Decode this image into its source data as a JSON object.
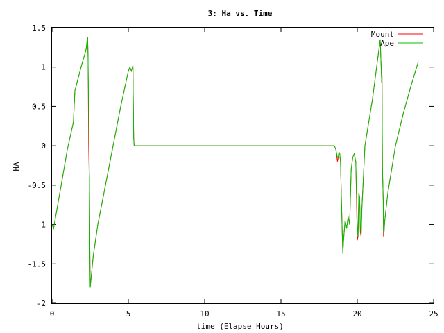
{
  "chart_data": {
    "type": "line",
    "title": "3: Ha vs. Time",
    "xlabel": "time (Elapse Hours)",
    "ylabel": "HA",
    "xlim": [
      0,
      25
    ],
    "ylim": [
      -2,
      1.5
    ],
    "xticks": [
      0,
      5,
      10,
      15,
      20,
      25
    ],
    "yticks": [
      -2,
      -1.5,
      -1,
      -0.5,
      0,
      0.5,
      1,
      1.5
    ],
    "xtick_labels": [
      "0",
      "5",
      "10",
      "15",
      "20",
      "25"
    ],
    "ytick_labels": [
      "-2",
      "-1.5",
      "-1",
      "-0.5",
      "0",
      "0.5",
      "1",
      "1.5"
    ],
    "grid": false,
    "legend_position": "top-right",
    "series": [
      {
        "name": "Mount",
        "color": "#ff0000",
        "x": [
          0.0,
          0.1,
          0.6,
          1.0,
          1.4,
          1.5,
          1.9,
          2.2,
          2.25,
          2.3,
          2.33,
          2.36,
          2.37,
          2.4,
          2.44,
          2.45,
          2.48,
          2.5,
          2.55,
          2.7,
          3.0,
          3.5,
          4.0,
          4.5,
          5.0,
          5.1,
          5.2,
          5.3,
          5.35,
          5.38,
          5.42,
          5.5,
          18.5,
          18.6,
          18.7,
          18.75,
          18.8,
          18.85,
          18.9,
          19.0,
          19.05,
          19.1,
          19.2,
          19.3,
          19.4,
          19.5,
          19.6,
          19.7,
          19.8,
          19.9,
          20.0,
          20.05,
          20.1,
          20.15,
          20.2,
          20.25,
          20.3,
          20.5,
          21.0,
          21.5,
          21.6,
          21.62,
          21.65,
          21.7,
          21.72,
          21.75,
          21.8,
          22.0,
          22.5,
          23.0,
          23.5,
          24.0
        ],
        "y": [
          -1.0,
          -1.05,
          -0.5,
          -0.05,
          0.3,
          0.7,
          1.0,
          1.2,
          1.25,
          1.35,
          1.38,
          1.15,
          0.95,
          0.0,
          -0.43,
          -0.4,
          -1.4,
          -1.8,
          -1.7,
          -1.4,
          -1.0,
          -0.5,
          0.0,
          0.5,
          0.95,
          1.0,
          0.95,
          1.02,
          0.1,
          0.0,
          0.0,
          0.0,
          0.0,
          -0.05,
          -0.2,
          -0.15,
          -0.08,
          -0.1,
          -0.2,
          -1.0,
          -1.37,
          -1.2,
          -0.95,
          -1.05,
          -0.9,
          -1.0,
          -0.3,
          -0.15,
          -0.1,
          -0.2,
          -1.2,
          -1.15,
          -0.6,
          -0.65,
          -1.1,
          -1.15,
          -0.8,
          0.0,
          0.6,
          1.35,
          0.8,
          0.9,
          -0.3,
          -0.7,
          -1.15,
          -1.1,
          -0.95,
          -0.6,
          0.0,
          0.4,
          0.75,
          1.07
        ]
      },
      {
        "name": "Ape",
        "color": "#00c000",
        "x": [
          0.0,
          0.1,
          0.6,
          1.0,
          1.4,
          1.5,
          1.9,
          2.2,
          2.25,
          2.3,
          2.33,
          2.36,
          2.37,
          2.4,
          2.44,
          2.45,
          2.48,
          2.5,
          2.55,
          2.7,
          3.0,
          3.5,
          4.0,
          4.5,
          5.0,
          5.1,
          5.2,
          5.3,
          5.35,
          5.38,
          5.42,
          5.5,
          18.5,
          18.6,
          18.7,
          18.75,
          18.8,
          18.85,
          18.9,
          19.0,
          19.05,
          19.1,
          19.2,
          19.3,
          19.4,
          19.5,
          19.6,
          19.7,
          19.8,
          19.9,
          20.0,
          20.05,
          20.1,
          20.15,
          20.2,
          20.25,
          20.3,
          20.5,
          21.0,
          21.5,
          21.6,
          21.62,
          21.65,
          21.7,
          21.72,
          21.75,
          21.8,
          22.0,
          22.5,
          23.0,
          23.5,
          24.0
        ],
        "y": [
          -1.0,
          -1.05,
          -0.5,
          -0.05,
          0.3,
          0.7,
          1.0,
          1.2,
          1.25,
          1.35,
          1.38,
          1.15,
          0.95,
          0.5,
          -0.3,
          -0.4,
          -1.4,
          -1.8,
          -1.7,
          -1.4,
          -1.0,
          -0.5,
          0.0,
          0.5,
          0.95,
          1.0,
          0.95,
          1.02,
          0.1,
          0.0,
          0.0,
          0.0,
          0.0,
          -0.05,
          -0.15,
          -0.15,
          -0.08,
          -0.1,
          -0.2,
          -1.0,
          -1.37,
          -1.2,
          -0.95,
          -1.05,
          -0.9,
          -1.0,
          -0.3,
          -0.15,
          -0.1,
          -0.2,
          -1.0,
          -1.15,
          -0.6,
          -0.65,
          -1.0,
          -1.15,
          -0.8,
          0.0,
          0.6,
          1.35,
          0.8,
          0.9,
          -0.3,
          -0.7,
          -1.1,
          -1.1,
          -0.95,
          -0.6,
          0.0,
          0.4,
          0.75,
          1.07
        ]
      }
    ]
  }
}
